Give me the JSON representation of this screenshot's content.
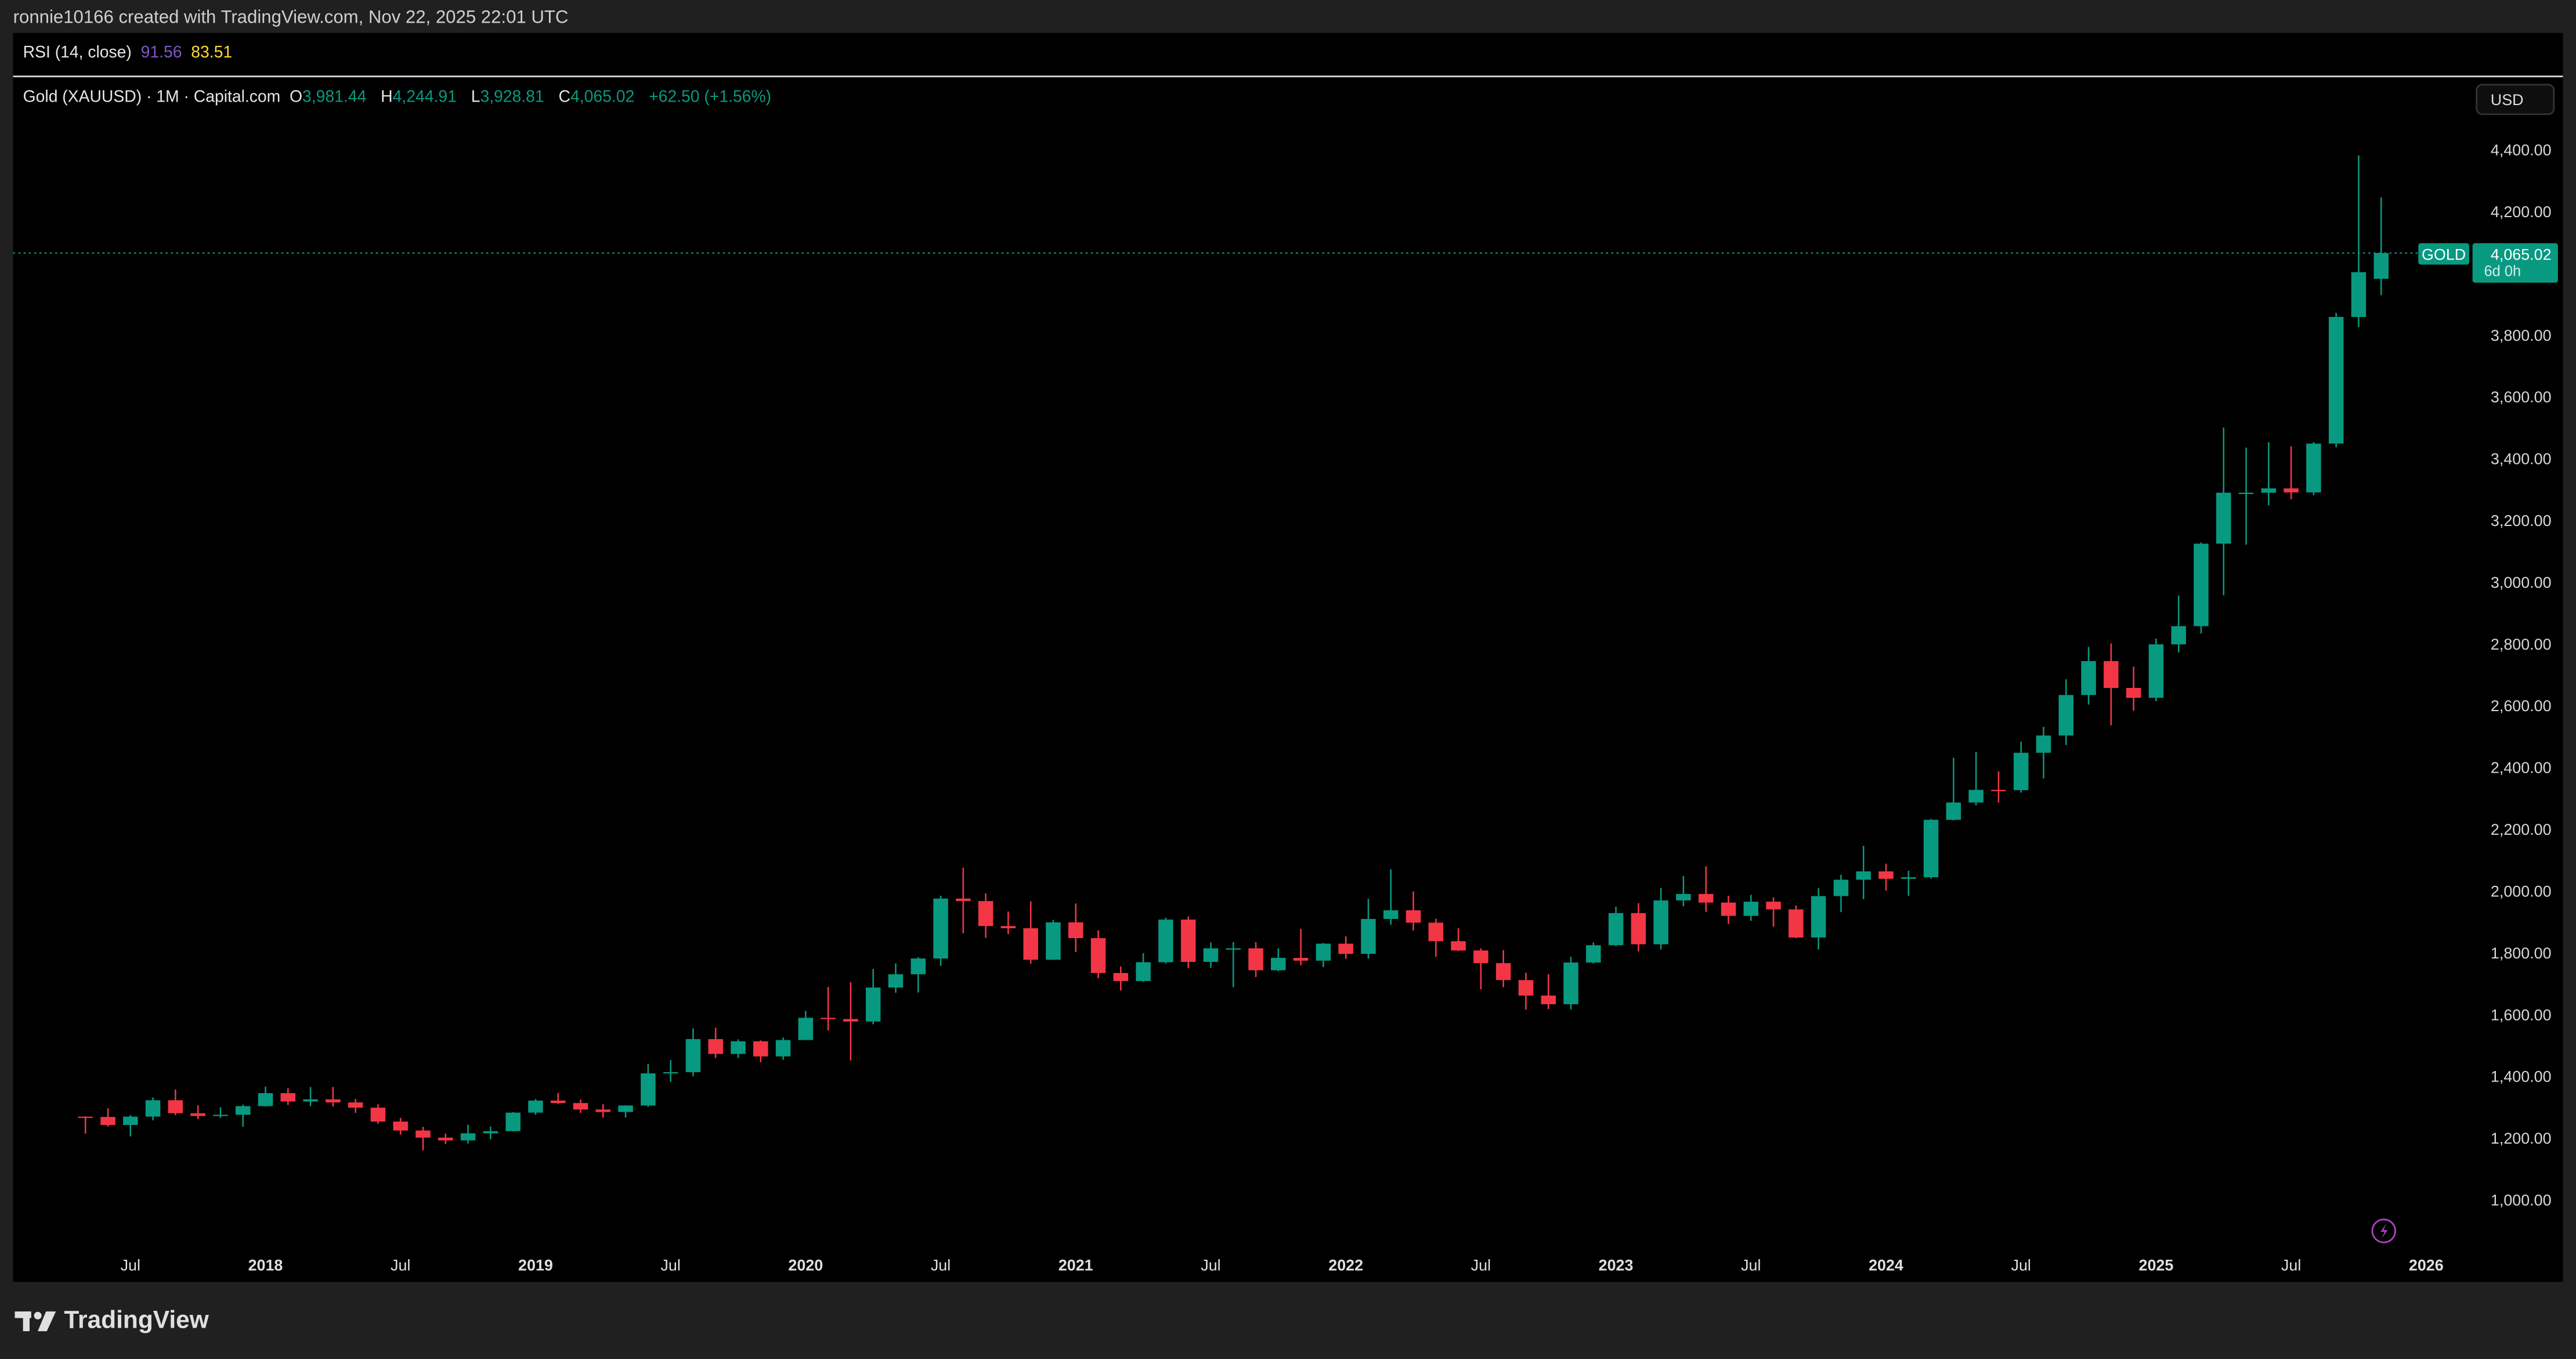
{
  "header": {
    "attribution": "ronnie10166 created with TradingView.com, Nov 22, 2025 22:01 UTC"
  },
  "rsi": {
    "label": "RSI (14, close)",
    "value1": "91.56",
    "value2": "83.51",
    "color1": "#7e57c2",
    "color2": "#fdd835"
  },
  "legend": {
    "symbol": "Gold (XAUUSD) · 1M · Capital.com",
    "o_label": "O",
    "o": "3,981.44",
    "h_label": "H",
    "h": "4,244.91",
    "l_label": "L",
    "l": "3,928.81",
    "c_label": "C",
    "c": "4,065.02",
    "change": "+62.50 (+1.56%)"
  },
  "currency_button": "USD",
  "price_tag": {
    "symbol": "GOLD",
    "price": "4,065.02",
    "countdown": "6d 0h"
  },
  "footer": {
    "brand": "TradingView"
  },
  "colors": {
    "up": "#089981",
    "down": "#f23645",
    "background": "#000000"
  },
  "chart_data": {
    "type": "candlestick",
    "interval": "1M",
    "ylim": [
      1000,
      4400
    ],
    "y_ticks": [
      "4,400.00",
      "4,200.00",
      "3,800.00",
      "3,600.00",
      "3,400.00",
      "3,200.00",
      "3,000.00",
      "2,800.00",
      "2,600.00",
      "2,400.00",
      "2,200.00",
      "2,000.00",
      "1,800.00",
      "1,600.00",
      "1,400.00",
      "1,200.00",
      "1,000.00"
    ],
    "y_tick_values": [
      4400,
      4200,
      3800,
      3600,
      3400,
      3200,
      3000,
      2800,
      2600,
      2400,
      2200,
      2000,
      1800,
      1600,
      1400,
      1200,
      1000
    ],
    "x_ticks": [
      {
        "label": "Jul",
        "date": "2017-07"
      },
      {
        "label": "2018",
        "date": "2018-01"
      },
      {
        "label": "Jul",
        "date": "2018-07"
      },
      {
        "label": "2019",
        "date": "2019-01"
      },
      {
        "label": "Jul",
        "date": "2019-07"
      },
      {
        "label": "2020",
        "date": "2020-01"
      },
      {
        "label": "Jul",
        "date": "2020-07"
      },
      {
        "label": "2021",
        "date": "2021-01"
      },
      {
        "label": "Jul",
        "date": "2021-07"
      },
      {
        "label": "2022",
        "date": "2022-01"
      },
      {
        "label": "Jul",
        "date": "2022-07"
      },
      {
        "label": "2023",
        "date": "2023-01"
      },
      {
        "label": "Jul",
        "date": "2023-07"
      },
      {
        "label": "2024",
        "date": "2024-01"
      },
      {
        "label": "Jul",
        "date": "2024-07"
      },
      {
        "label": "2025",
        "date": "2025-01"
      },
      {
        "label": "Jul",
        "date": "2025-07"
      },
      {
        "label": "2026",
        "date": "2026-01"
      }
    ],
    "last_price": 4065.02,
    "columns": [
      "date",
      "open",
      "high",
      "low",
      "close"
    ],
    "candles": [
      [
        "2017-05",
        1269,
        1270,
        1214,
        1268
      ],
      [
        "2017-06",
        1268,
        1296,
        1237,
        1242
      ],
      [
        "2017-07",
        1242,
        1274,
        1205,
        1269
      ],
      [
        "2017-08",
        1269,
        1331,
        1257,
        1322
      ],
      [
        "2017-09",
        1322,
        1357,
        1274,
        1280
      ],
      [
        "2017-10",
        1280,
        1306,
        1261,
        1271
      ],
      [
        "2017-11",
        1271,
        1299,
        1265,
        1275
      ],
      [
        "2017-12",
        1275,
        1308,
        1236,
        1303
      ],
      [
        "2018-01",
        1303,
        1366,
        1302,
        1345
      ],
      [
        "2018-02",
        1345,
        1361,
        1307,
        1318
      ],
      [
        "2018-03",
        1318,
        1365,
        1303,
        1325
      ],
      [
        "2018-04",
        1325,
        1365,
        1302,
        1315
      ],
      [
        "2018-05",
        1315,
        1326,
        1281,
        1298
      ],
      [
        "2018-06",
        1298,
        1309,
        1246,
        1253
      ],
      [
        "2018-07",
        1253,
        1265,
        1211,
        1224
      ],
      [
        "2018-08",
        1224,
        1236,
        1160,
        1201
      ],
      [
        "2018-09",
        1201,
        1214,
        1180,
        1192
      ],
      [
        "2018-10",
        1192,
        1243,
        1182,
        1215
      ],
      [
        "2018-11",
        1215,
        1237,
        1196,
        1222
      ],
      [
        "2018-12",
        1222,
        1284,
        1221,
        1282
      ],
      [
        "2019-01",
        1282,
        1326,
        1275,
        1321
      ],
      [
        "2019-02",
        1321,
        1346,
        1310,
        1313
      ],
      [
        "2019-03",
        1313,
        1324,
        1281,
        1292
      ],
      [
        "2019-04",
        1292,
        1310,
        1266,
        1284
      ],
      [
        "2019-05",
        1284,
        1306,
        1266,
        1305
      ],
      [
        "2019-06",
        1305,
        1439,
        1301,
        1409
      ],
      [
        "2019-07",
        1409,
        1452,
        1382,
        1413
      ],
      [
        "2019-08",
        1413,
        1555,
        1400,
        1520
      ],
      [
        "2019-09",
        1520,
        1557,
        1459,
        1472
      ],
      [
        "2019-10",
        1472,
        1519,
        1459,
        1513
      ],
      [
        "2019-11",
        1513,
        1516,
        1445,
        1464
      ],
      [
        "2019-12",
        1464,
        1525,
        1453,
        1517
      ],
      [
        "2020-01",
        1517,
        1611,
        1517,
        1589
      ],
      [
        "2020-02",
        1589,
        1689,
        1548,
        1585
      ],
      [
        "2020-03",
        1585,
        1704,
        1451,
        1577
      ],
      [
        "2020-04",
        1577,
        1747,
        1568,
        1687
      ],
      [
        "2020-05",
        1687,
        1765,
        1670,
        1730
      ],
      [
        "2020-06",
        1730,
        1785,
        1671,
        1781
      ],
      [
        "2020-07",
        1781,
        1984,
        1757,
        1975
      ],
      [
        "2020-08",
        1975,
        2075,
        1863,
        1967
      ],
      [
        "2020-09",
        1967,
        1992,
        1848,
        1886
      ],
      [
        "2020-10",
        1886,
        1933,
        1860,
        1879
      ],
      [
        "2020-11",
        1879,
        1966,
        1764,
        1777
      ],
      [
        "2020-12",
        1777,
        1906,
        1776,
        1898
      ],
      [
        "2021-01",
        1898,
        1959,
        1802,
        1847
      ],
      [
        "2021-02",
        1847,
        1872,
        1717,
        1734
      ],
      [
        "2021-03",
        1734,
        1755,
        1677,
        1708
      ],
      [
        "2021-04",
        1708,
        1798,
        1706,
        1769
      ],
      [
        "2021-05",
        1769,
        1913,
        1765,
        1907
      ],
      [
        "2021-06",
        1907,
        1917,
        1750,
        1770
      ],
      [
        "2021-07",
        1770,
        1833,
        1751,
        1814
      ],
      [
        "2021-08",
        1814,
        1834,
        1688,
        1814
      ],
      [
        "2021-09",
        1814,
        1834,
        1721,
        1743
      ],
      [
        "2021-10",
        1743,
        1814,
        1740,
        1783
      ],
      [
        "2021-11",
        1783,
        1877,
        1759,
        1774
      ],
      [
        "2021-12",
        1774,
        1831,
        1753,
        1829
      ],
      [
        "2022-01",
        1829,
        1853,
        1780,
        1796
      ],
      [
        "2022-02",
        1796,
        1974,
        1781,
        1909
      ],
      [
        "2022-03",
        1909,
        2070,
        1890,
        1937
      ],
      [
        "2022-04",
        1937,
        1998,
        1872,
        1897
      ],
      [
        "2022-05",
        1897,
        1910,
        1787,
        1837
      ],
      [
        "2022-06",
        1837,
        1879,
        1805,
        1807
      ],
      [
        "2022-07",
        1807,
        1814,
        1681,
        1766
      ],
      [
        "2022-08",
        1766,
        1808,
        1688,
        1711
      ],
      [
        "2022-09",
        1711,
        1735,
        1615,
        1661
      ],
      [
        "2022-10",
        1661,
        1730,
        1617,
        1633
      ],
      [
        "2022-11",
        1633,
        1786,
        1616,
        1768
      ],
      [
        "2022-12",
        1768,
        1833,
        1765,
        1824
      ],
      [
        "2023-01",
        1824,
        1949,
        1822,
        1928
      ],
      [
        "2023-02",
        1928,
        1960,
        1804,
        1827
      ],
      [
        "2023-03",
        1827,
        2009,
        1810,
        1969
      ],
      [
        "2023-04",
        1969,
        2048,
        1950,
        1990
      ],
      [
        "2023-05",
        1990,
        2079,
        1932,
        1962
      ],
      [
        "2023-06",
        1962,
        1984,
        1893,
        1919
      ],
      [
        "2023-07",
        1919,
        1987,
        1903,
        1965
      ],
      [
        "2023-08",
        1965,
        1979,
        1884,
        1940
      ],
      [
        "2023-09",
        1940,
        1953,
        1847,
        1849
      ],
      [
        "2023-10",
        1849,
        2009,
        1810,
        1983
      ],
      [
        "2023-11",
        1983,
        2052,
        1931,
        2036
      ],
      [
        "2023-12",
        2036,
        2146,
        1973,
        2063
      ],
      [
        "2024-01",
        2063,
        2088,
        2001,
        2039
      ],
      [
        "2024-02",
        2039,
        2065,
        1984,
        2044
      ],
      [
        "2024-03",
        2044,
        2233,
        2039,
        2230
      ],
      [
        "2024-04",
        2230,
        2431,
        2228,
        2286
      ],
      [
        "2024-05",
        2286,
        2450,
        2277,
        2327
      ],
      [
        "2024-06",
        2327,
        2387,
        2286,
        2326
      ],
      [
        "2024-07",
        2326,
        2483,
        2318,
        2447
      ],
      [
        "2024-08",
        2447,
        2531,
        2364,
        2503
      ],
      [
        "2024-09",
        2503,
        2685,
        2472,
        2634
      ],
      [
        "2024-10",
        2634,
        2790,
        2603,
        2744
      ],
      [
        "2024-11",
        2744,
        2801,
        2536,
        2657
      ],
      [
        "2024-12",
        2657,
        2726,
        2583,
        2625
      ],
      [
        "2025-01",
        2625,
        2817,
        2614,
        2798
      ],
      [
        "2025-02",
        2798,
        2956,
        2772,
        2857
      ],
      [
        "2025-03",
        2857,
        3128,
        2833,
        3124
      ],
      [
        "2025-04",
        3124,
        3500,
        2957,
        3289
      ],
      [
        "2025-05",
        3289,
        3435,
        3121,
        3289
      ],
      [
        "2025-06",
        3289,
        3452,
        3248,
        3303
      ],
      [
        "2025-07",
        3303,
        3439,
        3268,
        3290
      ],
      [
        "2025-08",
        3290,
        3453,
        3281,
        3448
      ],
      [
        "2025-09",
        3448,
        3871,
        3436,
        3858
      ],
      [
        "2025-10",
        3858,
        4381,
        3825,
        4003
      ],
      [
        "2025-11",
        3981.44,
        4244.91,
        3928.81,
        4065.02
      ]
    ]
  }
}
